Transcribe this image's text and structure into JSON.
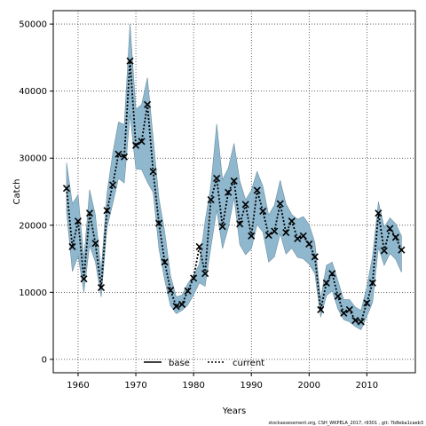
{
  "chart_data": {
    "type": "line",
    "xlabel": "Years",
    "ylabel": "Catch",
    "xlim": [
      1955.7,
      2018.4
    ],
    "ylim": [
      -2000,
      52000
    ],
    "xticks": [
      1960,
      1970,
      1980,
      1990,
      2000,
      2010
    ],
    "yticks": [
      0,
      10000,
      20000,
      30000,
      40000,
      50000
    ],
    "grid": true,
    "legend_position": "bottom-center",
    "footnote": "stockassessment.org, CSH_WKPELA_2017, r9301 , git: 7b8eba1caeb3",
    "colors": {
      "band": "#8fb8cf",
      "band_edge": "#6c8e9f",
      "line": "#000000"
    },
    "x": [
      1958,
      1959,
      1960,
      1961,
      1962,
      1963,
      1964,
      1965,
      1966,
      1967,
      1968,
      1969,
      1970,
      1971,
      1972,
      1973,
      1974,
      1975,
      1976,
      1977,
      1978,
      1979,
      1980,
      1981,
      1982,
      1983,
      1984,
      1985,
      1986,
      1987,
      1988,
      1989,
      1990,
      1991,
      1992,
      1993,
      1994,
      1995,
      1996,
      1997,
      1998,
      1999,
      2000,
      2001,
      2002,
      2003,
      2004,
      2005,
      2006,
      2007,
      2008,
      2009,
      2010,
      2011,
      2012,
      2013,
      2014,
      2015,
      2016
    ],
    "upper": [
      29300,
      23200,
      24500,
      15000,
      25300,
      21500,
      13200,
      24700,
      30700,
      35400,
      35000,
      50000,
      37300,
      38000,
      42000,
      33000,
      24000,
      19000,
      12500,
      9300,
      9600,
      11300,
      12500,
      14200,
      20600,
      25900,
      35100,
      26800,
      28500,
      32200,
      26600,
      23800,
      25200,
      28000,
      25800,
      21500,
      23000,
      26700,
      23200,
      21600,
      20900,
      21300,
      20100,
      17400,
      9000,
      14000,
      14500,
      11700,
      8900,
      8900,
      7800,
      7300,
      10800,
      15400,
      23500,
      19700,
      21100,
      20200,
      18400
    ],
    "lower": [
      22000,
      13100,
      15400,
      10000,
      17000,
      14500,
      9300,
      19600,
      23200,
      27000,
      26300,
      36500,
      28400,
      28300,
      26400,
      24900,
      16500,
      11800,
      8000,
      6800,
      7300,
      8100,
      9600,
      11400,
      10900,
      16700,
      22300,
      16500,
      19600,
      24100,
      17100,
      15600,
      16500,
      20100,
      19000,
      14500,
      15300,
      18700,
      15700,
      16600,
      15200,
      15000,
      14200,
      12800,
      6300,
      9500,
      10200,
      7500,
      5900,
      5600,
      4900,
      4400,
      6400,
      8500,
      16700,
      14000,
      15800,
      14900,
      13000
    ],
    "series": [
      {
        "name": "current",
        "values": [
          25500,
          16800,
          20600,
          12000,
          21800,
          17300,
          10700,
          22200,
          26000,
          30600,
          30200,
          44500,
          31900,
          32500,
          38000,
          28000,
          20300,
          14500,
          10300,
          7900,
          8200,
          10200,
          12100,
          16800,
          12800,
          23800,
          27000,
          19800,
          24900,
          26600,
          20200,
          23100,
          18400,
          25200,
          22100,
          18500,
          19100,
          23200,
          18900,
          20600,
          18000,
          18400,
          17200,
          15300,
          7400,
          11400,
          12800,
          9400,
          6900,
          7400,
          5800,
          5600,
          8400,
          11400,
          21800,
          16200,
          19500,
          18200,
          16300
        ]
      }
    ],
    "legend": [
      {
        "label": "base",
        "style": "solid"
      },
      {
        "label": "current",
        "style": "dotted"
      }
    ]
  }
}
